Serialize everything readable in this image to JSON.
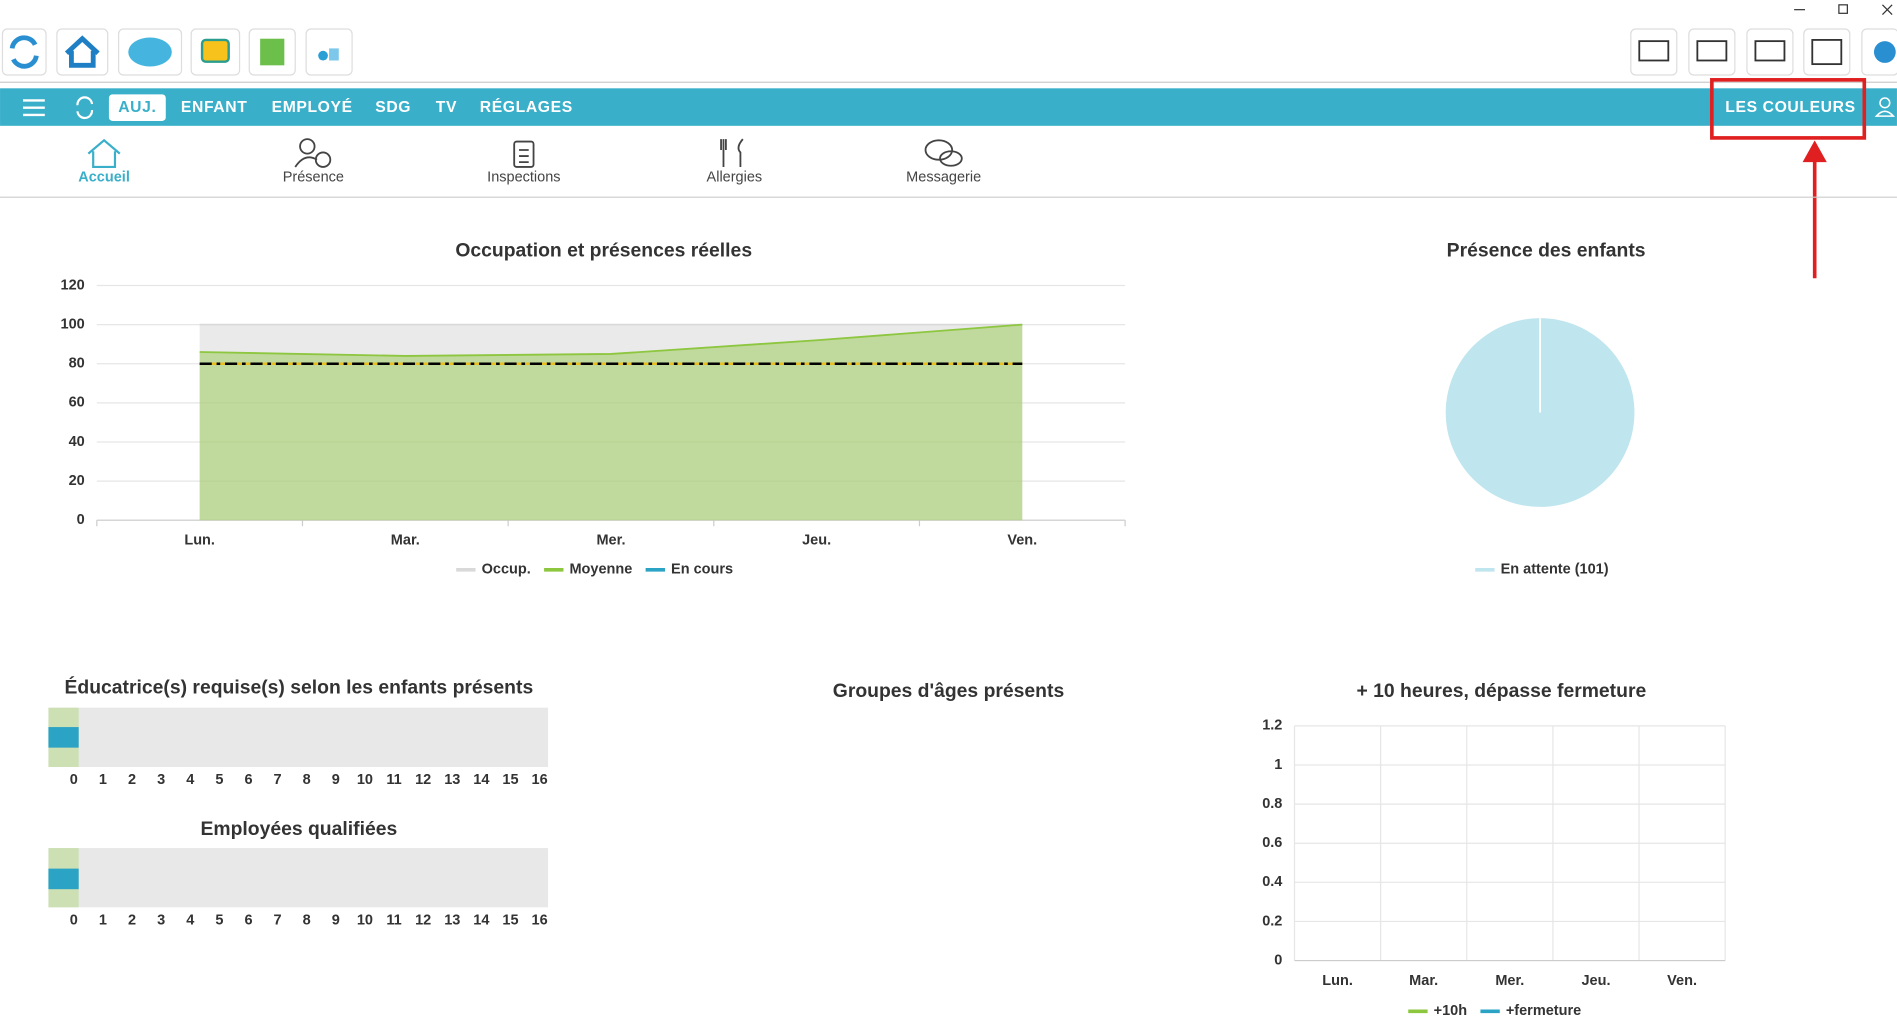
{
  "nav": {
    "items": [
      "AUJ.",
      "ENFANT",
      "EMPLOYÉ",
      "SDG",
      "TV",
      "RÉGLAGES"
    ],
    "right": "LES COULEURS"
  },
  "tabs": [
    "Accueil",
    "Présence",
    "Inspections",
    "Allergies",
    "Messagerie"
  ],
  "chart_data": [
    {
      "type": "line",
      "title": "Occupation et présences réelles",
      "area": true,
      "categories": [
        "Lun.",
        "Mar.",
        "Mer.",
        "Jeu.",
        "Ven."
      ],
      "series": [
        {
          "name": "Occup.",
          "color": "#d9d9d9",
          "values": [
            100,
            100,
            100,
            100,
            100
          ]
        },
        {
          "name": "Moyenne",
          "color": "#8dc63f",
          "values": [
            86,
            84,
            85,
            92,
            100
          ]
        },
        {
          "name": "En cours",
          "color": "#2aa3c4",
          "values": [
            null,
            null,
            null,
            null,
            null
          ]
        }
      ],
      "threshold": 80,
      "ylim": [
        0,
        120
      ],
      "yticks": [
        0,
        20,
        40,
        60,
        80,
        100,
        120
      ],
      "grid": true
    },
    {
      "type": "pie",
      "title": "Présence des enfants",
      "categories": [
        "En attente (101)"
      ],
      "values": [
        101
      ],
      "colors": [
        "#bfe5ee"
      ]
    },
    {
      "type": "bar",
      "orientation": "horizontal",
      "title": "Éducatrice(s) requise(s) selon les enfants présents",
      "values": [
        0
      ],
      "color": "#2aa3c4",
      "xlim": [
        0,
        16
      ],
      "xticks": [
        0,
        1,
        2,
        3,
        4,
        5,
        6,
        7,
        8,
        9,
        10,
        11,
        12,
        13,
        14,
        15,
        16
      ]
    },
    {
      "type": "bar",
      "orientation": "horizontal",
      "title": "Employées qualifiées",
      "values": [
        0
      ],
      "color": "#2aa3c4",
      "xlim": [
        0,
        16
      ],
      "xticks": [
        0,
        1,
        2,
        3,
        4,
        5,
        6,
        7,
        8,
        9,
        10,
        11,
        12,
        13,
        14,
        15,
        16
      ]
    },
    {
      "title": "Groupes d'âges présents"
    },
    {
      "type": "line",
      "title": "+ 10 heures, dépasse fermeture",
      "categories": [
        "Lun.",
        "Mar.",
        "Mer.",
        "Jeu.",
        "Ven."
      ],
      "series": [
        {
          "name": "+10h",
          "color": "#8dc63f",
          "values": [
            null,
            null,
            null,
            null,
            null
          ]
        },
        {
          "name": "+fermeture",
          "color": "#2aa3c4",
          "values": [
            null,
            null,
            null,
            null,
            null
          ]
        }
      ],
      "ylim": [
        0,
        1.2
      ],
      "yticks": [
        0,
        0.2,
        0.4,
        0.6,
        0.8,
        1,
        1.2
      ],
      "grid": true,
      "vgrid": true
    }
  ]
}
